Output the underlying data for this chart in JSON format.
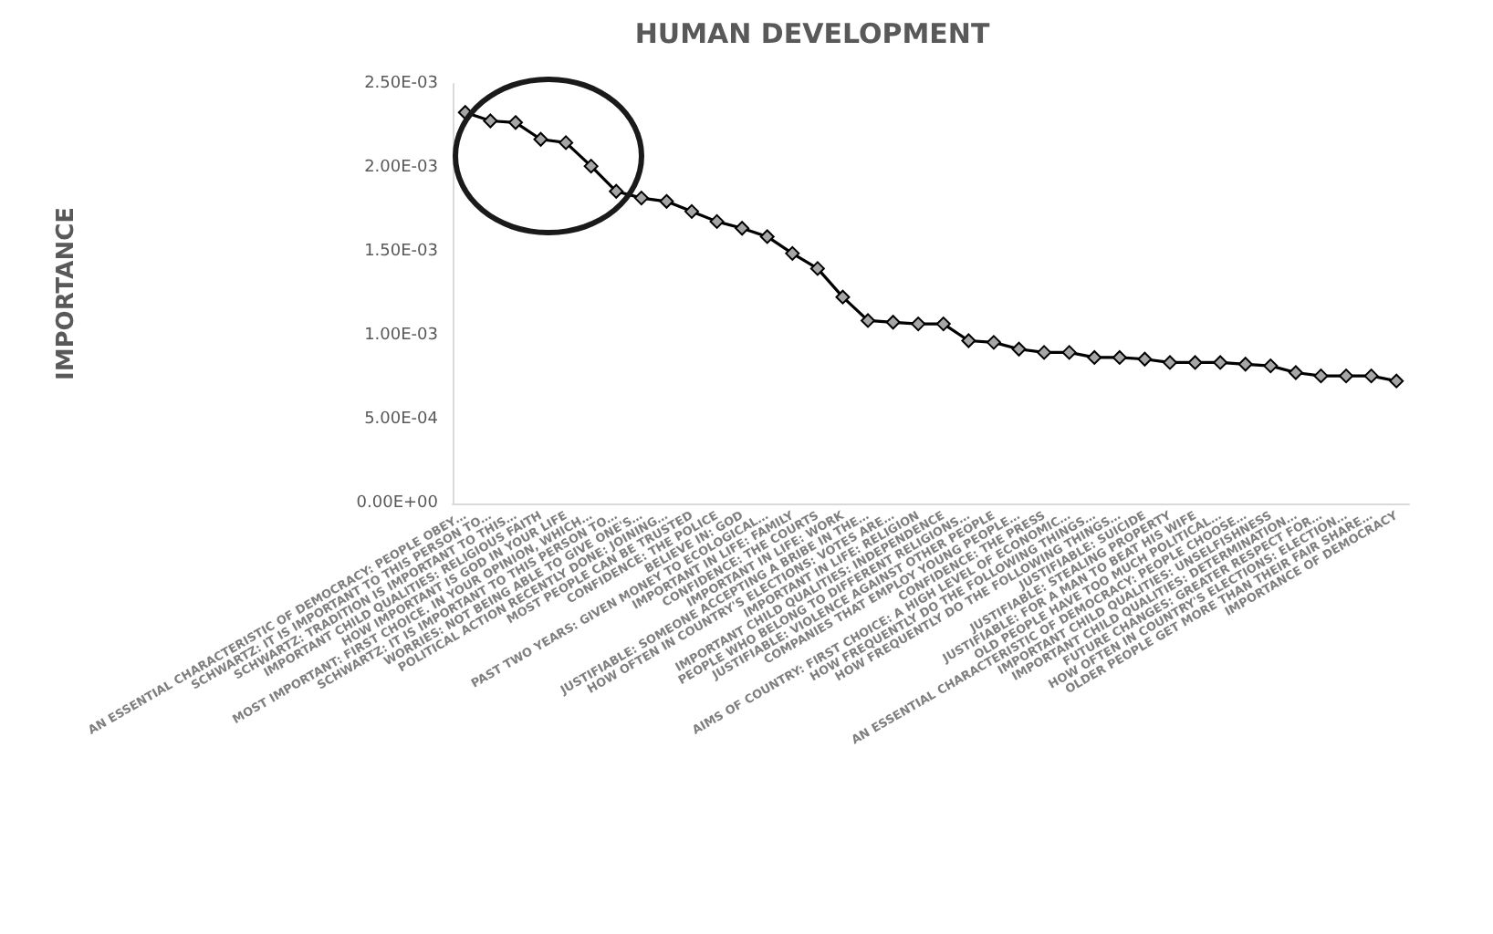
{
  "chart_data": {
    "type": "line",
    "title": "HUMAN DEVELOPMENT",
    "ylabel": "IMPORTANCE",
    "categories": [
      "AN ESSENTIAL CHARACTERISTIC OF DEMOCRACY: PEOPLE OBEY…",
      "SCHWARTZ: IT IS IMPORTANT TO THIS PERSON TO…",
      "SCHWARTZ: TRADITION IS IMPORTANT TO THIS…",
      "IMPORTANT CHILD QUALITIES: RELIGIOUS FAITH",
      "HOW IMPORTANT IS GOD IN YOUR LIFE",
      "MOST IMPORTANT: FIRST CHOICE. IN YOUR OPINION, WHICH…",
      "SCHWARTZ: IT IS IMPORTANT TO THIS PERSON TO…",
      "WORRIES: NOT BEING ABLE TO GIVE ONE'S…",
      "POLITICAL ACTION RECENTLY DONE: JOINING…",
      "MOST PEOPLE CAN BE TRUSTED",
      "CONFIDENCE: THE POLICE",
      "BELIEVE IN: GOD",
      "PAST TWO YEARS: GIVEN MONEY TO ECOLOGICAL…",
      "IMPORTANT IN LIFE: FAMILY",
      "CONFIDENCE: THE COURTS",
      "IMPORTANT IN LIFE: WORK",
      "JUSTIFIABLE: SOMEONE ACCEPTING A BRIBE IN THE…",
      "HOW OFTEN IN COUNTRY'S ELECTIONS: VOTES ARE…",
      "IMPORTANT IN LIFE: RELIGION",
      "IMPORTANT CHILD QUALITIES: INDEPENDENCE",
      "PEOPLE WHO BELONG TO DIFFERENT RELIGIONS…",
      "JUSTIFIABLE: VIOLENCE AGAINST OTHER PEOPLE",
      "COMPANIES THAT EMPLOY YOUNG PEOPLE…",
      "CONFIDENCE: THE PRESS",
      "AIMS OF COUNTRY: FIRST CHOICE: A HIGH LEVEL OF ECONOMIC…",
      "HOW FREQUENTLY DO THE FOLLOWING THINGS…",
      "HOW FREQUENTLY DO THE FOLLOWING THINGS…",
      "JUSTIFIABLE: SUICIDE",
      "JUSTIFIABLE: STEALING PROPERTY",
      "JUSTIFIABLE: FOR A MAN TO BEAT HIS WIFE",
      "OLD PEOPLE HAVE TOO MUCH POLITICAL…",
      "AN ESSENTIAL CHARACTERISTIC OF DEMOCRACY: PEOPLE CHOOSE…",
      "IMPORTANT CHILD QUALITIES: UNSELFISHNESS",
      "IMPORTANT CHILD QUALITIES: DETERMINATION…",
      "FUTURE CHANGES: GREATER RESPECT FOR…",
      "HOW OFTEN IN COUNTRY'S ELECTIONS: ELECTION…",
      "OLDER PEOPLE GET MORE THAN THEIR FAIR SHARE…",
      "IMPORTANCE OF DEMOCRACY"
    ],
    "series": [
      {
        "color": "#000000",
        "values": [
          0.00233,
          0.00228,
          0.00227,
          0.00217,
          0.00215,
          0.00201,
          0.00186,
          0.00182,
          0.0018,
          0.00174,
          0.00168,
          0.00164,
          0.00159,
          0.00149,
          0.0014,
          0.00123,
          0.00109,
          0.00108,
          0.00107,
          0.00107,
          0.00097,
          0.00096,
          0.00092,
          0.0009,
          0.0009,
          0.00087,
          0.00087,
          0.00086,
          0.00084,
          0.00084,
          0.00084,
          0.00083,
          0.00082,
          0.00078,
          0.00076,
          0.00076,
          0.00076,
          0.00073
        ]
      }
    ],
    "ylim": [
      0,
      0.0025
    ],
    "yticks": [
      {
        "value": 0,
        "label": "0.00E+00"
      },
      {
        "value": 0.0005,
        "label": "5.00E-04"
      },
      {
        "value": 0.001,
        "label": "1.00E-03"
      },
      {
        "value": 0.0015,
        "label": "1.50E-03"
      },
      {
        "value": 0.002,
        "label": "2.00E-03"
      },
      {
        "value": 0.0025,
        "label": "2.50E-03"
      }
    ],
    "grid": false,
    "marker": "diamond",
    "line_style": "solid"
  }
}
